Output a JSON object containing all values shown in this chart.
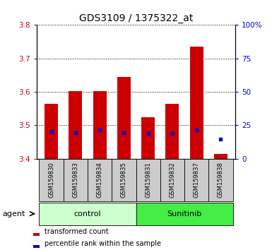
{
  "title": "GDS3109 / 1375322_at",
  "samples": [
    "GSM159830",
    "GSM159833",
    "GSM159834",
    "GSM159835",
    "GSM159831",
    "GSM159832",
    "GSM159837",
    "GSM159838"
  ],
  "bar_tops": [
    3.565,
    3.602,
    3.602,
    3.645,
    3.525,
    3.565,
    3.735,
    3.415
  ],
  "bar_bottom": 3.4,
  "percentile_values": [
    3.482,
    3.478,
    3.487,
    3.478,
    3.476,
    3.476,
    3.487,
    3.458
  ],
  "ylim": [
    3.4,
    3.8
  ],
  "yticks_left": [
    3.4,
    3.5,
    3.6,
    3.7,
    3.8
  ],
  "yticks_right_pct": [
    0,
    25,
    50,
    75,
    100
  ],
  "bar_color": "#cc0000",
  "percentile_color": "#0000cc",
  "groups": [
    {
      "label": "control",
      "count": 4,
      "color": "#ccffcc"
    },
    {
      "label": "Sunitinib",
      "count": 4,
      "color": "#44ee44"
    }
  ],
  "group_label": "agent",
  "legend_bar_label": "transformed count",
  "legend_dot_label": "percentile rank within the sample",
  "title_fontsize": 10,
  "tick_fontsize": 7.5,
  "left_tick_color": "#cc0000",
  "right_tick_color": "#0000cc",
  "sample_bg_color": "#cccccc",
  "bar_width": 0.55
}
